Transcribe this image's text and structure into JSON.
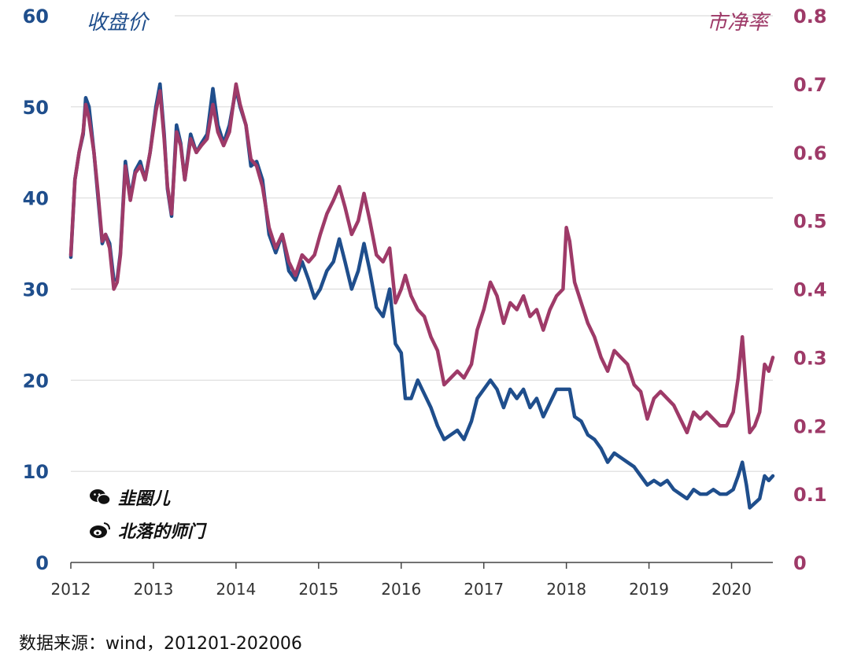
{
  "chart_data": {
    "type": "line",
    "left_axis_title": "收盘价",
    "right_axis_title": "市净率",
    "x_ticks": [
      "2012",
      "2013",
      "2014",
      "2015",
      "2016",
      "2017",
      "2018",
      "2019",
      "2020"
    ],
    "y_left": {
      "range": [
        0,
        60
      ],
      "ticks": [
        "0",
        "10",
        "20",
        "30",
        "40",
        "50",
        "60"
      ]
    },
    "y_right": {
      "range": [
        0,
        0.8
      ],
      "ticks": [
        "0",
        "0.1",
        "0.2",
        "0.3",
        "0.4",
        "0.5",
        "0.6",
        "0.7",
        "0.8"
      ]
    },
    "grid": true,
    "series": [
      {
        "axis": "left",
        "color": "#1f4e8c",
        "points": [
          [
            2012.0,
            33.5
          ],
          [
            2012.05,
            42.0
          ],
          [
            2012.1,
            45.0
          ],
          [
            2012.15,
            47.0
          ],
          [
            2012.18,
            51.0
          ],
          [
            2012.22,
            50.0
          ],
          [
            2012.28,
            45.0
          ],
          [
            2012.33,
            40.0
          ],
          [
            2012.38,
            35.0
          ],
          [
            2012.42,
            36.0
          ],
          [
            2012.47,
            35.0
          ],
          [
            2012.52,
            31.0
          ],
          [
            2012.56,
            31.0
          ],
          [
            2012.6,
            34.0
          ],
          [
            2012.66,
            44.0
          ],
          [
            2012.72,
            40.0
          ],
          [
            2012.78,
            43.0
          ],
          [
            2012.84,
            44.0
          ],
          [
            2012.9,
            42.0
          ],
          [
            2012.96,
            45.0
          ],
          [
            2013.03,
            50.0
          ],
          [
            2013.08,
            52.5
          ],
          [
            2013.13,
            47.0
          ],
          [
            2013.17,
            41.0
          ],
          [
            2013.22,
            38.0
          ],
          [
            2013.28,
            48.0
          ],
          [
            2013.33,
            46.0
          ],
          [
            2013.38,
            42.0
          ],
          [
            2013.45,
            47.0
          ],
          [
            2013.52,
            45.0
          ],
          [
            2013.58,
            46.0
          ],
          [
            2013.65,
            47.0
          ],
          [
            2013.72,
            52.0
          ],
          [
            2013.78,
            48.0
          ],
          [
            2013.85,
            46.0
          ],
          [
            2013.92,
            48.0
          ],
          [
            2014.0,
            52.0
          ],
          [
            2014.05,
            50.0
          ],
          [
            2014.12,
            48.0
          ],
          [
            2014.18,
            43.5
          ],
          [
            2014.25,
            44.0
          ],
          [
            2014.32,
            42.0
          ],
          [
            2014.4,
            36.0
          ],
          [
            2014.48,
            34.0
          ],
          [
            2014.56,
            36.0
          ],
          [
            2014.64,
            32.0
          ],
          [
            2014.72,
            31.0
          ],
          [
            2014.8,
            33.0
          ],
          [
            2014.88,
            31.0
          ],
          [
            2014.95,
            29.0
          ],
          [
            2015.02,
            30.0
          ],
          [
            2015.1,
            32.0
          ],
          [
            2015.18,
            33.0
          ],
          [
            2015.25,
            35.5
          ],
          [
            2015.32,
            33.0
          ],
          [
            2015.4,
            30.0
          ],
          [
            2015.48,
            32.0
          ],
          [
            2015.55,
            35.0
          ],
          [
            2015.62,
            32.0
          ],
          [
            2015.7,
            28.0
          ],
          [
            2015.78,
            27.0
          ],
          [
            2015.86,
            30.0
          ],
          [
            2015.93,
            24.0
          ],
          [
            2016.0,
            23.0
          ],
          [
            2016.05,
            18.0
          ],
          [
            2016.12,
            18.0
          ],
          [
            2016.2,
            20.0
          ],
          [
            2016.28,
            18.5
          ],
          [
            2016.36,
            17.0
          ],
          [
            2016.44,
            15.0
          ],
          [
            2016.52,
            13.5
          ],
          [
            2016.6,
            14.0
          ],
          [
            2016.68,
            14.5
          ],
          [
            2016.76,
            13.5
          ],
          [
            2016.85,
            15.5
          ],
          [
            2016.92,
            18.0
          ],
          [
            2017.0,
            19.0
          ],
          [
            2017.08,
            20.0
          ],
          [
            2017.16,
            19.0
          ],
          [
            2017.24,
            17.0
          ],
          [
            2017.32,
            19.0
          ],
          [
            2017.4,
            18.0
          ],
          [
            2017.48,
            19.0
          ],
          [
            2017.56,
            17.0
          ],
          [
            2017.64,
            18.0
          ],
          [
            2017.72,
            16.0
          ],
          [
            2017.8,
            17.5
          ],
          [
            2017.88,
            19.0
          ],
          [
            2017.96,
            19.0
          ],
          [
            2018.04,
            19.0
          ],
          [
            2018.1,
            16.0
          ],
          [
            2018.18,
            15.5
          ],
          [
            2018.26,
            14.0
          ],
          [
            2018.34,
            13.5
          ],
          [
            2018.42,
            12.5
          ],
          [
            2018.5,
            11.0
          ],
          [
            2018.58,
            12.0
          ],
          [
            2018.66,
            11.5
          ],
          [
            2018.74,
            11.0
          ],
          [
            2018.82,
            10.5
          ],
          [
            2018.9,
            9.5
          ],
          [
            2018.98,
            8.5
          ],
          [
            2019.06,
            9.0
          ],
          [
            2019.14,
            8.5
          ],
          [
            2019.22,
            9.0
          ],
          [
            2019.3,
            8.0
          ],
          [
            2019.38,
            7.5
          ],
          [
            2019.46,
            7.0
          ],
          [
            2019.54,
            8.0
          ],
          [
            2019.62,
            7.5
          ],
          [
            2019.7,
            7.5
          ],
          [
            2019.78,
            8.0
          ],
          [
            2019.86,
            7.5
          ],
          [
            2019.94,
            7.5
          ],
          [
            2020.02,
            8.0
          ],
          [
            2020.08,
            9.5
          ],
          [
            2020.13,
            11.0
          ],
          [
            2020.18,
            8.5
          ],
          [
            2020.22,
            6.0
          ],
          [
            2020.28,
            6.5
          ],
          [
            2020.34,
            7.0
          ],
          [
            2020.4,
            9.5
          ],
          [
            2020.45,
            9.0
          ],
          [
            2020.5,
            9.5
          ]
        ]
      },
      {
        "axis": "right",
        "color": "#9e3a68",
        "points": [
          [
            2012.0,
            0.45
          ],
          [
            2012.05,
            0.56
          ],
          [
            2012.1,
            0.6
          ],
          [
            2012.15,
            0.63
          ],
          [
            2012.18,
            0.67
          ],
          [
            2012.22,
            0.65
          ],
          [
            2012.28,
            0.6
          ],
          [
            2012.33,
            0.54
          ],
          [
            2012.38,
            0.47
          ],
          [
            2012.42,
            0.48
          ],
          [
            2012.47,
            0.46
          ],
          [
            2012.52,
            0.4
          ],
          [
            2012.56,
            0.41
          ],
          [
            2012.6,
            0.45
          ],
          [
            2012.66,
            0.58
          ],
          [
            2012.72,
            0.53
          ],
          [
            2012.78,
            0.57
          ],
          [
            2012.84,
            0.58
          ],
          [
            2012.9,
            0.56
          ],
          [
            2012.96,
            0.6
          ],
          [
            2013.03,
            0.66
          ],
          [
            2013.08,
            0.69
          ],
          [
            2013.13,
            0.62
          ],
          [
            2013.17,
            0.55
          ],
          [
            2013.22,
            0.51
          ],
          [
            2013.28,
            0.63
          ],
          [
            2013.33,
            0.61
          ],
          [
            2013.38,
            0.56
          ],
          [
            2013.45,
            0.62
          ],
          [
            2013.52,
            0.6
          ],
          [
            2013.58,
            0.61
          ],
          [
            2013.65,
            0.62
          ],
          [
            2013.72,
            0.67
          ],
          [
            2013.78,
            0.63
          ],
          [
            2013.85,
            0.61
          ],
          [
            2013.92,
            0.63
          ],
          [
            2014.0,
            0.7
          ],
          [
            2014.05,
            0.67
          ],
          [
            2014.12,
            0.64
          ],
          [
            2014.18,
            0.59
          ],
          [
            2014.25,
            0.58
          ],
          [
            2014.32,
            0.55
          ],
          [
            2014.4,
            0.49
          ],
          [
            2014.48,
            0.46
          ],
          [
            2014.56,
            0.48
          ],
          [
            2014.64,
            0.44
          ],
          [
            2014.72,
            0.42
          ],
          [
            2014.8,
            0.45
          ],
          [
            2014.88,
            0.44
          ],
          [
            2014.95,
            0.45
          ],
          [
            2015.02,
            0.48
          ],
          [
            2015.1,
            0.51
          ],
          [
            2015.18,
            0.53
          ],
          [
            2015.25,
            0.55
          ],
          [
            2015.32,
            0.52
          ],
          [
            2015.4,
            0.48
          ],
          [
            2015.48,
            0.5
          ],
          [
            2015.55,
            0.54
          ],
          [
            2015.62,
            0.5
          ],
          [
            2015.7,
            0.45
          ],
          [
            2015.78,
            0.44
          ],
          [
            2015.86,
            0.46
          ],
          [
            2015.93,
            0.38
          ],
          [
            2016.0,
            0.4
          ],
          [
            2016.05,
            0.42
          ],
          [
            2016.12,
            0.39
          ],
          [
            2016.2,
            0.37
          ],
          [
            2016.28,
            0.36
          ],
          [
            2016.36,
            0.33
          ],
          [
            2016.44,
            0.31
          ],
          [
            2016.52,
            0.26
          ],
          [
            2016.6,
            0.27
          ],
          [
            2016.68,
            0.28
          ],
          [
            2016.76,
            0.27
          ],
          [
            2016.85,
            0.29
          ],
          [
            2016.92,
            0.34
          ],
          [
            2017.0,
            0.37
          ],
          [
            2017.08,
            0.41
          ],
          [
            2017.16,
            0.39
          ],
          [
            2017.24,
            0.35
          ],
          [
            2017.32,
            0.38
          ],
          [
            2017.4,
            0.37
          ],
          [
            2017.48,
            0.39
          ],
          [
            2017.56,
            0.36
          ],
          [
            2017.64,
            0.37
          ],
          [
            2017.72,
            0.34
          ],
          [
            2017.8,
            0.37
          ],
          [
            2017.88,
            0.39
          ],
          [
            2017.96,
            0.4
          ],
          [
            2018.0,
            0.49
          ],
          [
            2018.04,
            0.47
          ],
          [
            2018.1,
            0.41
          ],
          [
            2018.18,
            0.38
          ],
          [
            2018.26,
            0.35
          ],
          [
            2018.34,
            0.33
          ],
          [
            2018.42,
            0.3
          ],
          [
            2018.5,
            0.28
          ],
          [
            2018.58,
            0.31
          ],
          [
            2018.66,
            0.3
          ],
          [
            2018.74,
            0.29
          ],
          [
            2018.82,
            0.26
          ],
          [
            2018.9,
            0.25
          ],
          [
            2018.98,
            0.21
          ],
          [
            2019.06,
            0.24
          ],
          [
            2019.14,
            0.25
          ],
          [
            2019.22,
            0.24
          ],
          [
            2019.3,
            0.23
          ],
          [
            2019.38,
            0.21
          ],
          [
            2019.46,
            0.19
          ],
          [
            2019.54,
            0.22
          ],
          [
            2019.62,
            0.21
          ],
          [
            2019.7,
            0.22
          ],
          [
            2019.78,
            0.21
          ],
          [
            2019.86,
            0.2
          ],
          [
            2019.94,
            0.2
          ],
          [
            2020.02,
            0.22
          ],
          [
            2020.08,
            0.27
          ],
          [
            2020.13,
            0.33
          ],
          [
            2020.18,
            0.25
          ],
          [
            2020.22,
            0.19
          ],
          [
            2020.28,
            0.2
          ],
          [
            2020.34,
            0.22
          ],
          [
            2020.4,
            0.29
          ],
          [
            2020.45,
            0.28
          ],
          [
            2020.5,
            0.3
          ]
        ]
      }
    ]
  },
  "watermark": {
    "brand1": "韭圈儿",
    "brand2": "北落的师门"
  },
  "source_note": "数据来源：wind，201201-202006"
}
